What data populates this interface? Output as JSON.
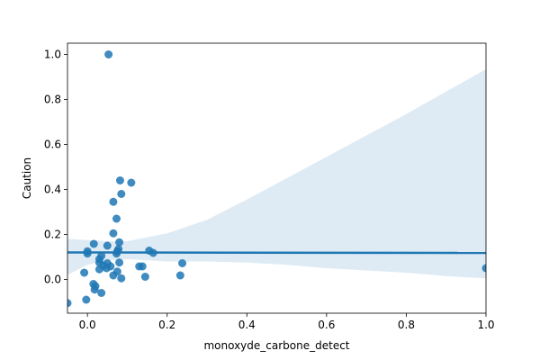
{
  "chart_data": {
    "type": "scatter",
    "title": "",
    "xlabel": "monoxyde_carbone_detect",
    "ylabel": "Caution",
    "xlim": [
      -0.05,
      1.0
    ],
    "ylim": [
      -0.15,
      1.05
    ],
    "x_ticks": [
      0.0,
      0.2,
      0.4,
      0.6,
      0.8,
      1.0
    ],
    "x_tick_labels": [
      "0.0",
      "0.2",
      "0.4",
      "0.6",
      "0.8",
      "1.0"
    ],
    "y_ticks": [
      0.0,
      0.2,
      0.4,
      0.6,
      0.8,
      1.0
    ],
    "y_tick_labels": [
      "0.0",
      "0.2",
      "0.4",
      "0.6",
      "0.8",
      "1.0"
    ],
    "grid": false,
    "legend": "none",
    "point_color": "#1f77b4",
    "points": [
      {
        "x": 0.053,
        "y": 1.0
      },
      {
        "x": 0.082,
        "y": 0.44
      },
      {
        "x": 0.11,
        "y": 0.43
      },
      {
        "x": 0.085,
        "y": 0.38
      },
      {
        "x": 0.065,
        "y": 0.345
      },
      {
        "x": 0.073,
        "y": 0.27
      },
      {
        "x": 0.065,
        "y": 0.205
      },
      {
        "x": 0.08,
        "y": 0.165
      },
      {
        "x": 0.016,
        "y": 0.158
      },
      {
        "x": 0.05,
        "y": 0.15
      },
      {
        "x": 0.078,
        "y": 0.135
      },
      {
        "x": 0.155,
        "y": 0.128
      },
      {
        "x": 0.0,
        "y": 0.125
      },
      {
        "x": 0.075,
        "y": 0.125
      },
      {
        "x": 0.165,
        "y": 0.118
      },
      {
        "x": 0.0,
        "y": 0.115
      },
      {
        "x": 0.073,
        "y": 0.115
      },
      {
        "x": 0.035,
        "y": 0.105
      },
      {
        "x": 0.03,
        "y": 0.09
      },
      {
        "x": 0.03,
        "y": 0.075
      },
      {
        "x": 0.08,
        "y": 0.075
      },
      {
        "x": 0.05,
        "y": 0.072
      },
      {
        "x": 0.238,
        "y": 0.072
      },
      {
        "x": 0.04,
        "y": 0.062
      },
      {
        "x": 0.058,
        "y": 0.058
      },
      {
        "x": 0.13,
        "y": 0.058
      },
      {
        "x": 0.138,
        "y": 0.058
      },
      {
        "x": 0.048,
        "y": 0.05
      },
      {
        "x": 0.03,
        "y": 0.045
      },
      {
        "x": 0.075,
        "y": 0.035
      },
      {
        "x": -0.008,
        "y": 0.03
      },
      {
        "x": 0.065,
        "y": 0.018
      },
      {
        "x": 0.233,
        "y": 0.018
      },
      {
        "x": 0.145,
        "y": 0.012
      },
      {
        "x": 0.085,
        "y": 0.005
      },
      {
        "x": 0.015,
        "y": -0.02
      },
      {
        "x": 0.02,
        "y": -0.03
      },
      {
        "x": 0.018,
        "y": -0.045
      },
      {
        "x": 0.035,
        "y": -0.06
      },
      {
        "x": -0.003,
        "y": -0.09
      },
      {
        "x": -0.05,
        "y": -0.105
      },
      {
        "x": 1.0,
        "y": 0.05
      }
    ],
    "regression_line": {
      "x": [
        -0.05,
        1.0
      ],
      "y": [
        0.12,
        0.118
      ],
      "color": "#1f77b4"
    },
    "confidence_band": {
      "x": [
        -0.05,
        0.0,
        0.05,
        0.1,
        0.2,
        0.3,
        0.4,
        0.5,
        0.6,
        0.7,
        0.8,
        0.9,
        1.0
      ],
      "upper": [
        0.18,
        0.175,
        0.17,
        0.17,
        0.205,
        0.265,
        0.355,
        0.45,
        0.545,
        0.64,
        0.735,
        0.835,
        0.935
      ],
      "lower": [
        0.02,
        0.065,
        0.085,
        0.09,
        0.08,
        0.08,
        0.075,
        0.065,
        0.05,
        0.04,
        0.03,
        0.015,
        0.005
      ],
      "color": "#1f77b4"
    }
  }
}
